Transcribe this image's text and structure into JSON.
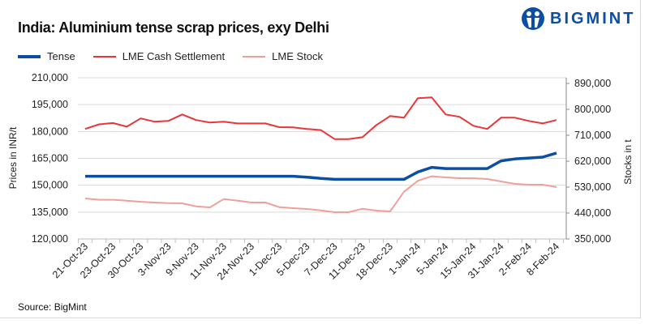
{
  "title": "India: Aluminium tense scrap prices, exy Delhi",
  "logo": {
    "text": "BIGMINT",
    "color": "#0b4ea2"
  },
  "source": "Source: BigMint",
  "chart_data": {
    "type": "line",
    "title": "India: Aluminium tense scrap prices, exy Delhi",
    "ylabel": "Prices in INR/t",
    "y2label": "Stocks in t",
    "ylim": [
      120000,
      210000
    ],
    "y2lim": [
      350000,
      890000
    ],
    "yticks": [
      "120,000",
      "135,000",
      "150,000",
      "165,000",
      "180,000",
      "195,000",
      "210,000"
    ],
    "y2ticks": [
      "350,000",
      "440,000",
      "530,000",
      "620,000",
      "710,000",
      "800,000",
      "890,000"
    ],
    "xtick_labels": [
      "21-Oct-23",
      "23-Oct-23",
      "30-Oct-23",
      "3-Nov-23",
      "9-Nov-23",
      "11-Nov-23",
      "24-Nov-23",
      "1-Dec-23",
      "5-Dec-23",
      "7-Dec-23",
      "11-Dec-23",
      "18-Dec-23",
      "1-Jan-24",
      "5-Jan-24",
      "15-Jan-24",
      "31-Jan-24",
      "2-Feb-24",
      "8-Feb-24"
    ],
    "grid": true,
    "legend": "top-left",
    "series": [
      {
        "name": "Tense",
        "axis": "left",
        "color": "#0b4ea2",
        "values": [
          155000,
          155000,
          155000,
          155000,
          155000,
          155000,
          155000,
          155000,
          155000,
          155000,
          155000,
          155000,
          155000,
          155000,
          155000,
          155000,
          154500,
          153800,
          153300,
          153300,
          153300,
          153300,
          153300,
          153300,
          157400,
          160000,
          159300,
          159300,
          159300,
          159300,
          163600,
          164700,
          165200,
          165700,
          168000
        ]
      },
      {
        "name": "LME Cash Settlement",
        "axis": "left",
        "color": "#e8363a",
        "values": [
          181400,
          184000,
          184700,
          182700,
          187300,
          185500,
          185900,
          189500,
          186400,
          185000,
          185500,
          184500,
          184500,
          184500,
          182400,
          182300,
          181400,
          180800,
          175700,
          175700,
          176800,
          183600,
          188600,
          187700,
          198600,
          199000,
          189500,
          188200,
          183200,
          181400,
          187700,
          187700,
          185900,
          184500,
          186400
        ]
      },
      {
        "name": "LME Stock",
        "axis": "right",
        "color": "#f0a09a",
        "values": [
          490600,
          486000,
          486000,
          483000,
          479000,
          476500,
          474600,
          473700,
          463400,
          459700,
          488700,
          483000,
          476500,
          476500,
          460600,
          456900,
          454100,
          449300,
          442800,
          442800,
          455000,
          448400,
          445600,
          514000,
          551900,
          567700,
          563800,
          561000,
          561000,
          558000,
          549700,
          541300,
          538400,
          538400,
          530000
        ]
      }
    ]
  }
}
